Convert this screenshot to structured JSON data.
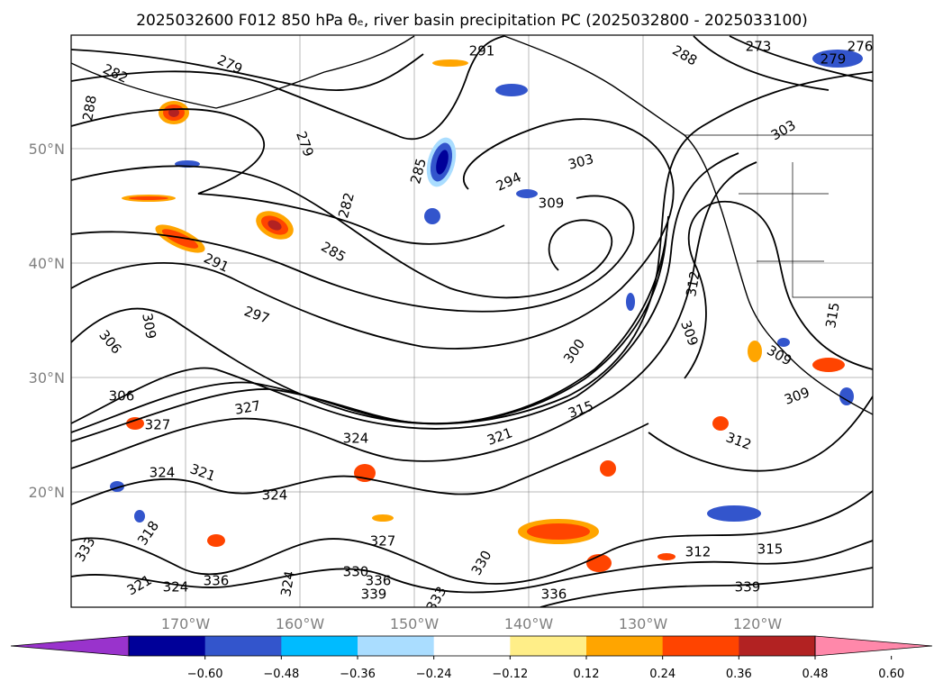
{
  "title": "2025032600 F012 850 hPa θₑ, river basin precipitation PC (2025032800 - 2025033100)",
  "lat_labels": [
    "50°N",
    "40°N",
    "30°N",
    "20°N"
  ],
  "lon_labels": [
    "170°W",
    "160°W",
    "150°W",
    "140°W",
    "130°W",
    "120°W"
  ],
  "colorbar": {
    "ticks": [
      "−0.60",
      "−0.48",
      "−0.36",
      "−0.24",
      "−0.12",
      "0.12",
      "0.24",
      "0.36",
      "0.48",
      "0.60"
    ],
    "colors": [
      "#9933cc",
      "#000099",
      "#3355cc",
      "#00bbff",
      "#aaddff",
      "#ffffff",
      "#ffee88",
      "#ffa500",
      "#ff4400",
      "#b22222",
      "#ff88aa"
    ]
  },
  "contour_labels": [
    "282",
    "279",
    "288",
    "291",
    "288",
    "279",
    "276",
    "273",
    "279",
    "285",
    "282",
    "294",
    "303",
    "309",
    "285",
    "291",
    "297",
    "312",
    "306",
    "309",
    "306",
    "300",
    "309",
    "327",
    "327",
    "324",
    "315",
    "321",
    "309",
    "312",
    "324",
    "321",
    "324",
    "327",
    "318",
    "312",
    "315",
    "330",
    "336",
    "339",
    "324",
    "333",
    "321",
    "333",
    "336",
    "324",
    "330",
    "339",
    "303",
    "309",
    "315",
    "336"
  ]
}
